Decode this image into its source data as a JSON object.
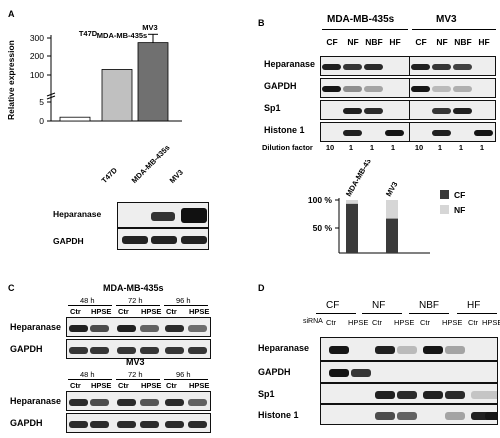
{
  "panels": {
    "A": {
      "letter": "A",
      "chart_data": {
        "type": "bar",
        "categories": [
          "T47D",
          "MDA-MB-435s",
          "MV3"
        ],
        "values": [
          1,
          130,
          275
        ],
        "errors": [
          0,
          0,
          45
        ],
        "ylabel": "Relative expression",
        "yticks": [
          "300",
          "200",
          "100",
          "5",
          "0"
        ],
        "colors": [
          "#ffffff",
          "#c0c0c0",
          "#707070"
        ]
      },
      "blot_lanes": [
        "T47D",
        "MDA-MB-435s",
        "MV3"
      ],
      "blot_rows": [
        "Heparanase",
        "GAPDH"
      ]
    },
    "B": {
      "letter": "B",
      "cells": [
        "MDA-MB-435s",
        "MV3"
      ],
      "lanes": [
        "CF",
        "NF",
        "NBF",
        "HF",
        "CF",
        "NF",
        "NBF",
        "HF"
      ],
      "rows": [
        "Heparanase",
        "GAPDH",
        "Sp1",
        "Histone 1"
      ],
      "dilution_label": "Dilution factor",
      "dilution_values": [
        "10",
        "1",
        "1",
        "1",
        "10",
        "1",
        "1",
        "1"
      ],
      "chart_data": {
        "type": "bar",
        "categories": [
          "MDA-MB-435s",
          "MV3"
        ],
        "series": [
          {
            "name": "CF",
            "values": [
              93,
              65
            ]
          },
          {
            "name": "NF",
            "values": [
              7,
              35
            ]
          }
        ],
        "yticks": [
          "100 %",
          "50 %"
        ],
        "colors": {
          "CF": "#3a3a3a",
          "NF": "#d6d6d6"
        }
      }
    },
    "C": {
      "letter": "C",
      "blocks": [
        {
          "title": "MDA-MB-435s",
          "times": [
            "48 h",
            "72 h",
            "96 h"
          ],
          "lanes": [
            "Ctr",
            "HPSE",
            "Ctr",
            "HPSE",
            "Ctr",
            "HPSE"
          ],
          "rows": [
            "Heparanase",
            "GAPDH"
          ]
        },
        {
          "title": "MV3",
          "times": [
            "48 h",
            "72 h",
            "96 h"
          ],
          "lanes": [
            "Ctr",
            "HPSE",
            "Ctr",
            "HPSE",
            "Ctr",
            "HPSE"
          ],
          "rows": [
            "Heparanase",
            "GAPDH"
          ]
        }
      ]
    },
    "D": {
      "letter": "D",
      "fractions": [
        "CF",
        "NF",
        "NBF",
        "HF"
      ],
      "sirna_label": "siRNA",
      "lanes": [
        "Ctr",
        "HPSE",
        "Ctr",
        "HPSE",
        "Ctr",
        "HPSE",
        "Ctr",
        "HPSE"
      ],
      "rows": [
        "Heparanase",
        "GAPDH",
        "Sp1",
        "Histone 1"
      ]
    }
  }
}
